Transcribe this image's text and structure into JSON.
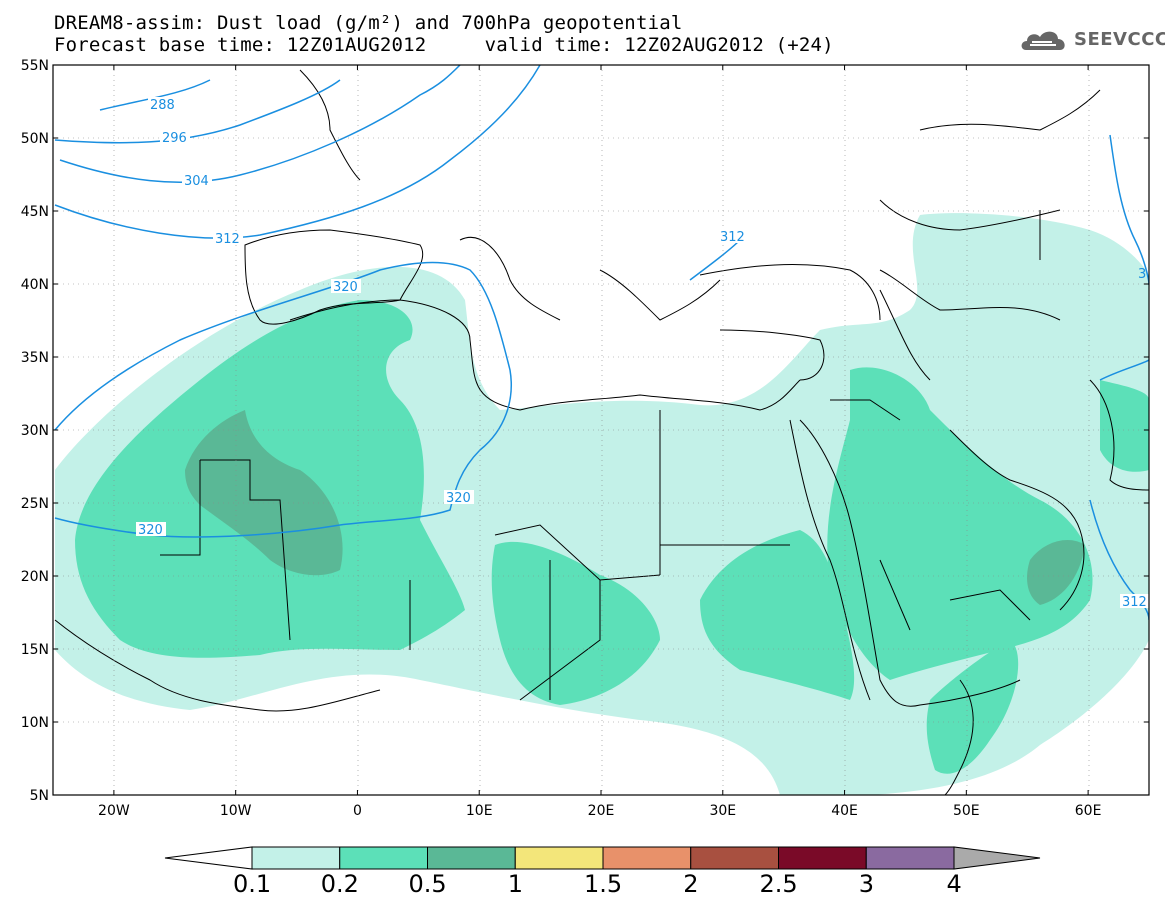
{
  "title": {
    "line1": "DREAM8-assim: Dust load (g/m²) and 700hPa geopotential",
    "line2": "Forecast base time: 12Z01AUG2012     valid time: 12Z02AUG2012 (+24)"
  },
  "logo": {
    "text": "SEEVCCC",
    "icon": "cloud-icon"
  },
  "map": {
    "lon_range": [
      -25,
      65
    ],
    "lat_range": [
      5,
      55
    ],
    "lat_labels": [
      "55N",
      "50N",
      "45N",
      "40N",
      "35N",
      "30N",
      "25N",
      "20N",
      "15N",
      "10N",
      "5N"
    ],
    "lon_labels": [
      "20W",
      "10W",
      "0",
      "10E",
      "20E",
      "30E",
      "40E",
      "50E",
      "60E"
    ]
  },
  "contours": {
    "labels": [
      "288",
      "296",
      "304",
      "312",
      "320",
      "320",
      "320",
      "312",
      "312",
      "3"
    ]
  },
  "colorbar": {
    "labels": [
      "0.1",
      "0.2",
      "0.5",
      "1",
      "1.5",
      "2",
      "2.5",
      "3",
      "4"
    ],
    "colors": [
      "#c3f1e8",
      "#5ce0b8",
      "#5ab896",
      "#f3e67a",
      "#e8916a",
      "#a85040",
      "#7a0a28",
      "#8a6aa0"
    ],
    "extend_low_color": "#ffffff",
    "extend_high_color": "#aaaaaa"
  }
}
